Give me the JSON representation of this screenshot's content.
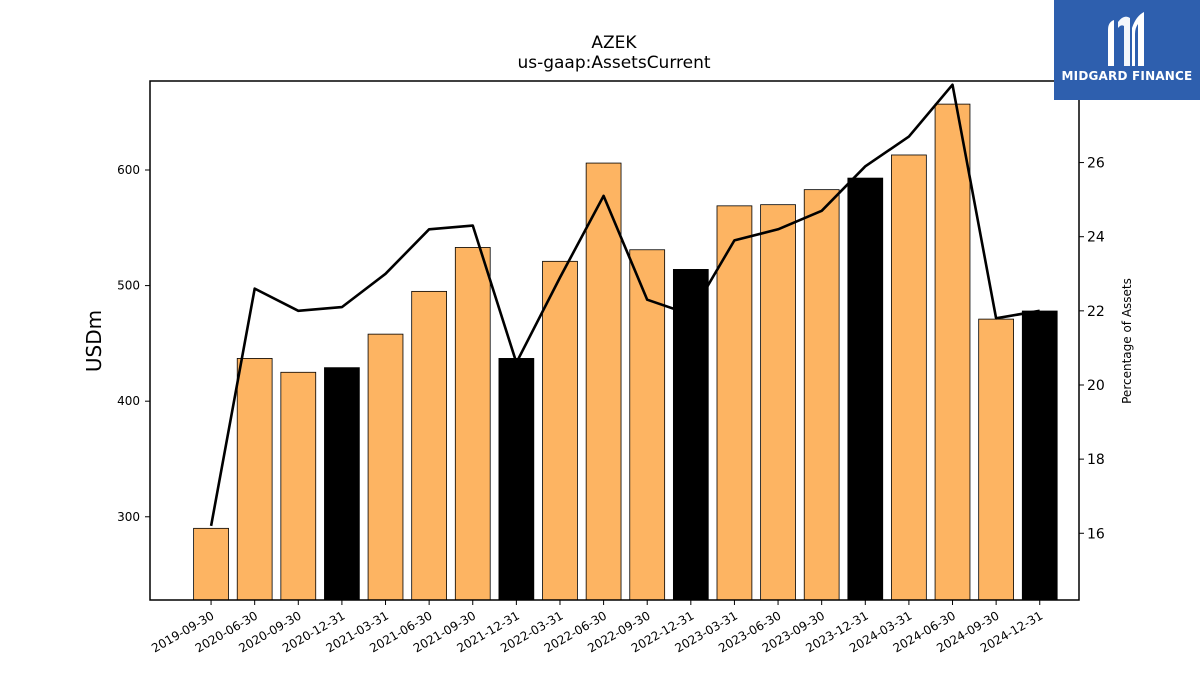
{
  "chart_data": {
    "type": "bar",
    "title": "AZEK",
    "subtitle": "us-gaap:AssetsCurrent",
    "ylabel": "USDm",
    "ylabel_right": "Percentage of Assets",
    "xlabel": "",
    "ylim": [
      228,
      677
    ],
    "ylim_right": [
      14.2,
      28.2
    ],
    "yticks": [
      300,
      400,
      500,
      600
    ],
    "yticks_right": [
      16,
      18,
      20,
      22,
      24,
      26,
      28
    ],
    "grid": false,
    "legend": "none",
    "categories": [
      "2019-09-30",
      "2020-06-30",
      "2020-09-30",
      "2020-12-31",
      "2021-03-31",
      "2021-06-30",
      "2021-09-30",
      "2021-12-31",
      "2022-03-31",
      "2022-06-30",
      "2022-09-30",
      "2022-12-31",
      "2023-03-31",
      "2023-06-30",
      "2023-09-30",
      "2023-12-31",
      "2024-03-31",
      "2024-06-30",
      "2024-09-30",
      "2024-12-31"
    ],
    "series": [
      {
        "type": "bar",
        "axis": "left",
        "values": [
          290,
          437,
          425,
          429,
          458,
          495,
          533,
          437,
          521,
          606,
          531,
          514,
          569,
          570,
          583,
          593,
          613,
          657,
          471,
          478
        ],
        "highlight": [
          false,
          false,
          false,
          true,
          false,
          false,
          false,
          true,
          false,
          false,
          false,
          true,
          false,
          false,
          false,
          true,
          false,
          false,
          false,
          true
        ]
      },
      {
        "type": "line",
        "axis": "right",
        "values": [
          16.2,
          22.6,
          22.0,
          22.1,
          23.0,
          24.2,
          24.3,
          20.6,
          22.9,
          25.1,
          22.3,
          21.9,
          23.9,
          24.2,
          24.7,
          25.9,
          26.7,
          28.1,
          21.8,
          22.0
        ]
      }
    ],
    "colors": {
      "bar": "#fdb462",
      "bar_highlight": "#000000",
      "line": "#000000"
    }
  },
  "logo": {
    "text": "MIDGARD FINANCE",
    "icon": "midgard-logo-icon",
    "color": "#2e5fae"
  }
}
